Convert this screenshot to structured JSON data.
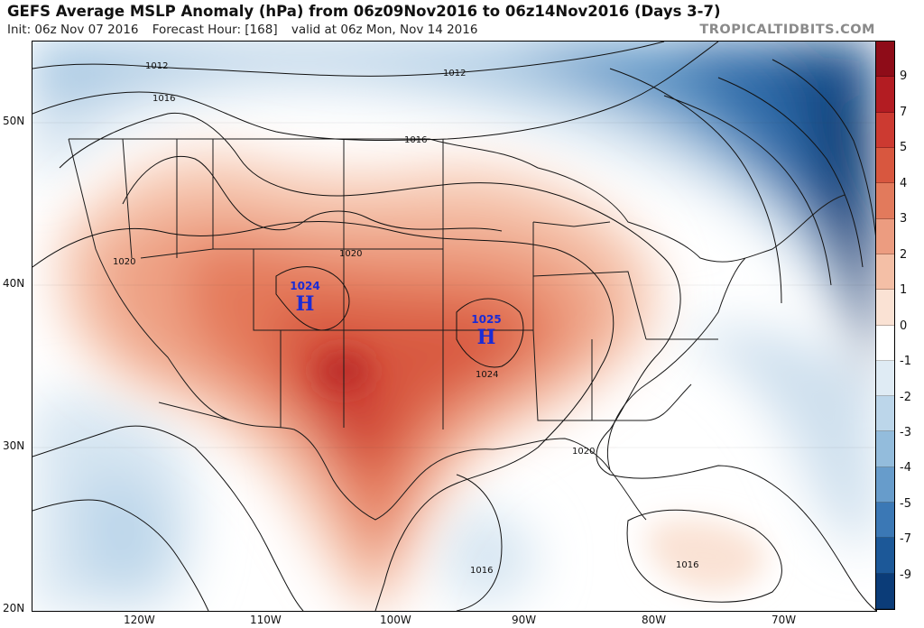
{
  "header": {
    "title": "GEFS Average MSLP Anomaly (hPa) from 06z09Nov2016 to 06z14Nov2016 (Days 3-7)",
    "init": "Init: 06z Nov 07 2016",
    "forecast_hour": "Forecast Hour: [168]",
    "valid": "valid at 06z Mon, Nov 14 2016",
    "brand": "TROPICALTIDBITS.COM"
  },
  "map": {
    "lat_labels": [
      "50N",
      "40N",
      "30N",
      "20N"
    ],
    "lon_labels": [
      "120W",
      "110W",
      "100W",
      "90W",
      "80W",
      "70W"
    ],
    "contour_labels": [
      "1012",
      "1012",
      "1016",
      "1016",
      "1020",
      "1020",
      "1024",
      "1020",
      "1016",
      "1016"
    ],
    "pressure_centers": [
      {
        "value": "1024",
        "letter": "H"
      },
      {
        "value": "1025",
        "letter": "H"
      }
    ],
    "colors": {
      "high_center": "#1a2bd6",
      "positive_max": "#a61419",
      "negative_max": "#0b3c78",
      "neutral": "#ffffff"
    }
  },
  "colorbar": {
    "labels": [
      "9",
      "7",
      "5",
      "4",
      "3",
      "2",
      "1",
      "0",
      "-1",
      "-2",
      "-3",
      "-4",
      "-5",
      "-7",
      "-9"
    ],
    "colors": [
      "#8e0c18",
      "#b31c22",
      "#cc3a31",
      "#d8573f",
      "#e27a5c",
      "#ec9c80",
      "#f4bfa6",
      "#fae2d4",
      "#ffffff",
      "#dfebf4",
      "#bcd6ea",
      "#93bcdc",
      "#679ccb",
      "#3b78b5",
      "#1c5898",
      "#0b3c78"
    ]
  }
}
